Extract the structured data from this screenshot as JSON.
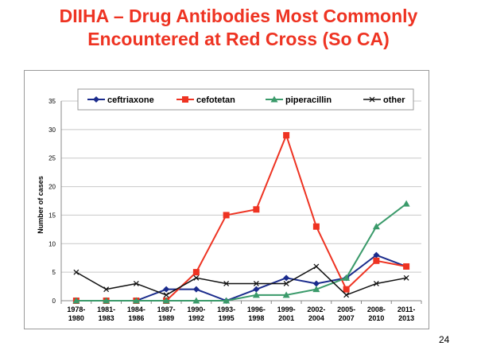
{
  "slide": {
    "title_line1": "DIIHA – Drug Antibodies Most Commonly",
    "title_line2": "Encountered at Red Cross (So CA)",
    "title_color": "#ee3322",
    "page_number": "24"
  },
  "chart_data": {
    "type": "line",
    "title": "",
    "xlabel": "",
    "ylabel": "Number of cases",
    "ylim": [
      0,
      35
    ],
    "yticks": [
      0,
      5,
      10,
      15,
      20,
      25,
      30,
      35
    ],
    "grid": true,
    "legend_position": "top",
    "categories": [
      [
        "1978-",
        "1980"
      ],
      [
        "1981-",
        "1983"
      ],
      [
        "1984-",
        "1986"
      ],
      [
        "1987-",
        "1989"
      ],
      [
        "1990-",
        "1992"
      ],
      [
        "1993-",
        "1995"
      ],
      [
        "1996-",
        "1998"
      ],
      [
        "1999-",
        "2001"
      ],
      [
        "2002-",
        "2004"
      ],
      [
        "2005-",
        "2007"
      ],
      [
        "2008-",
        "2010"
      ],
      [
        "2011-",
        "2013"
      ]
    ],
    "series": [
      {
        "name": "ceftriaxone",
        "color": "#1a2b8c",
        "marker": "diamond",
        "values": [
          0,
          0,
          0,
          2,
          2,
          0,
          2,
          4,
          3,
          4,
          8,
          6
        ]
      },
      {
        "name": "cefotetan",
        "color": "#ee3322",
        "marker": "square",
        "values": [
          0,
          0,
          0,
          0,
          5,
          15,
          16,
          29,
          13,
          2,
          7,
          6
        ]
      },
      {
        "name": "piperacillin",
        "color": "#3a9a6a",
        "marker": "triangle",
        "values": [
          0,
          0,
          0,
          0,
          0,
          0,
          1,
          1,
          2,
          4,
          13,
          17
        ]
      },
      {
        "name": "other",
        "color": "#111111",
        "marker": "x",
        "values": [
          5,
          2,
          3,
          1,
          4,
          3,
          3,
          3,
          6,
          1,
          3,
          4
        ]
      }
    ]
  }
}
